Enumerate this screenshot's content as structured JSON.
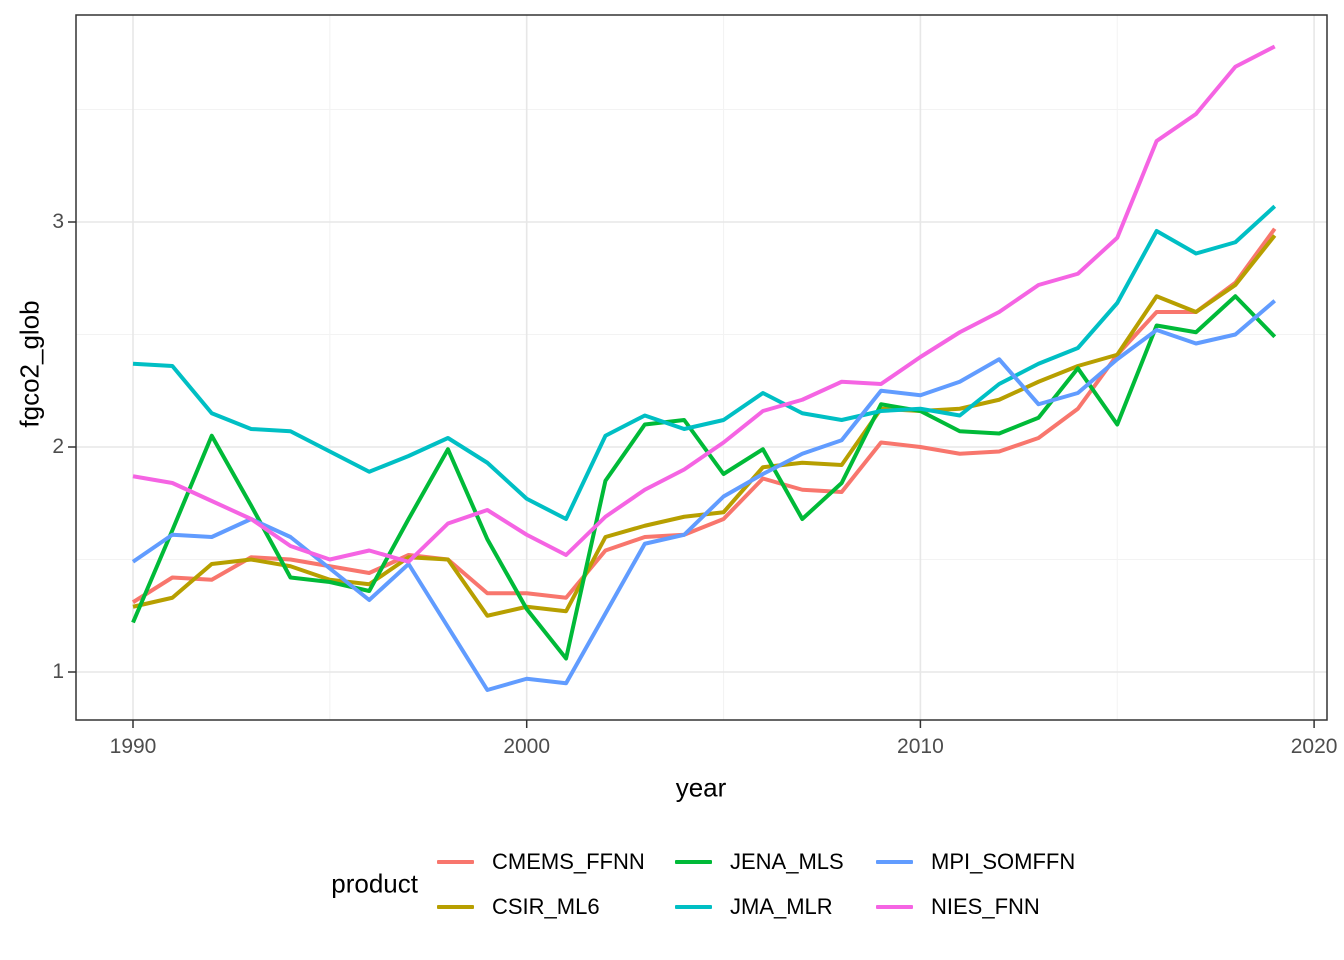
{
  "chart_data": {
    "type": "line",
    "title": "",
    "xlabel": "year",
    "ylabel": "fgco2_glob",
    "legend_title": "product",
    "legend_position": "bottom",
    "grid": true,
    "xlim": [
      1988.55,
      2020.3
    ],
    "ylim": [
      0.79,
      3.92
    ],
    "x_ticks": [
      {
        "label": "1990",
        "value": 1990
      },
      {
        "label": "2000",
        "value": 2000
      },
      {
        "label": "2010",
        "value": 2010
      },
      {
        "label": "2020",
        "value": 2020
      }
    ],
    "x_minor_ticks": [
      1995,
      2005,
      2015
    ],
    "y_ticks": [
      {
        "label": "1",
        "value": 1
      },
      {
        "label": "2",
        "value": 2
      },
      {
        "label": "3",
        "value": 3
      }
    ],
    "y_minor_ticks": [
      1.5,
      2.5,
      3.5
    ],
    "years": [
      1990,
      1991,
      1992,
      1993,
      1994,
      1995,
      1996,
      1997,
      1998,
      1999,
      2000,
      2001,
      2002,
      2003,
      2004,
      2005,
      2006,
      2007,
      2008,
      2009,
      2010,
      2011,
      2012,
      2013,
      2014,
      2015,
      2016,
      2017,
      2018,
      2019
    ],
    "series": [
      {
        "name": "CMEMS_FFNN",
        "color": "#F8766D",
        "values": [
          1.31,
          1.42,
          1.41,
          1.51,
          1.5,
          1.47,
          1.44,
          1.52,
          1.5,
          1.35,
          1.35,
          1.33,
          1.54,
          1.6,
          1.61,
          1.68,
          1.86,
          1.81,
          1.8,
          2.02,
          2.0,
          1.97,
          1.98,
          2.04,
          2.17,
          2.41,
          2.6,
          2.6,
          2.73,
          2.97
        ]
      },
      {
        "name": "CSIR_ML6",
        "color": "#B79F00",
        "values": [
          1.29,
          1.33,
          1.48,
          1.5,
          1.47,
          1.41,
          1.39,
          1.51,
          1.5,
          1.25,
          1.29,
          1.27,
          1.6,
          1.65,
          1.69,
          1.71,
          1.91,
          1.93,
          1.92,
          2.17,
          2.16,
          2.17,
          2.21,
          2.29,
          2.36,
          2.41,
          2.67,
          2.6,
          2.72,
          2.94
        ]
      },
      {
        "name": "JENA_MLS",
        "color": "#00BA38",
        "values": [
          1.22,
          1.63,
          2.05,
          1.74,
          1.42,
          1.4,
          1.36,
          1.68,
          1.99,
          1.59,
          1.28,
          1.06,
          1.85,
          2.1,
          2.12,
          1.88,
          1.99,
          1.68,
          1.84,
          2.19,
          2.16,
          2.07,
          2.06,
          2.13,
          2.35,
          2.1,
          2.54,
          2.51,
          2.67,
          2.49
        ]
      },
      {
        "name": "JMA_MLR",
        "color": "#00BFC4",
        "values": [
          2.37,
          2.36,
          2.15,
          2.08,
          2.07,
          1.98,
          1.89,
          1.96,
          2.04,
          1.93,
          1.77,
          1.68,
          2.05,
          2.14,
          2.08,
          2.12,
          2.24,
          2.15,
          2.12,
          2.16,
          2.17,
          2.14,
          2.28,
          2.37,
          2.44,
          2.64,
          2.96,
          2.86,
          2.91,
          3.07
        ]
      },
      {
        "name": "MPI_SOMFFN",
        "color": "#619CFF",
        "values": [
          1.49,
          1.61,
          1.6,
          1.68,
          1.6,
          1.46,
          1.32,
          1.48,
          1.2,
          0.92,
          0.97,
          0.95,
          1.26,
          1.57,
          1.61,
          1.78,
          1.88,
          1.97,
          2.03,
          2.25,
          2.23,
          2.29,
          2.39,
          2.19,
          2.24,
          2.39,
          2.52,
          2.46,
          2.5,
          2.65
        ]
      },
      {
        "name": "NIES_FNN",
        "color": "#F564E3",
        "values": [
          1.87,
          1.84,
          1.76,
          1.68,
          1.56,
          1.5,
          1.54,
          1.49,
          1.66,
          1.72,
          1.61,
          1.52,
          1.69,
          1.81,
          1.9,
          2.02,
          2.16,
          2.21,
          2.29,
          2.28,
          2.4,
          2.51,
          2.6,
          2.72,
          2.77,
          2.93,
          3.36,
          3.48,
          3.69,
          3.78
        ]
      }
    ],
    "panel": {
      "background": "#ffffff",
      "border_color": "#333333",
      "grid_major_color": "#E7E7E7",
      "grid_minor_color": "#F3F3F3"
    }
  }
}
